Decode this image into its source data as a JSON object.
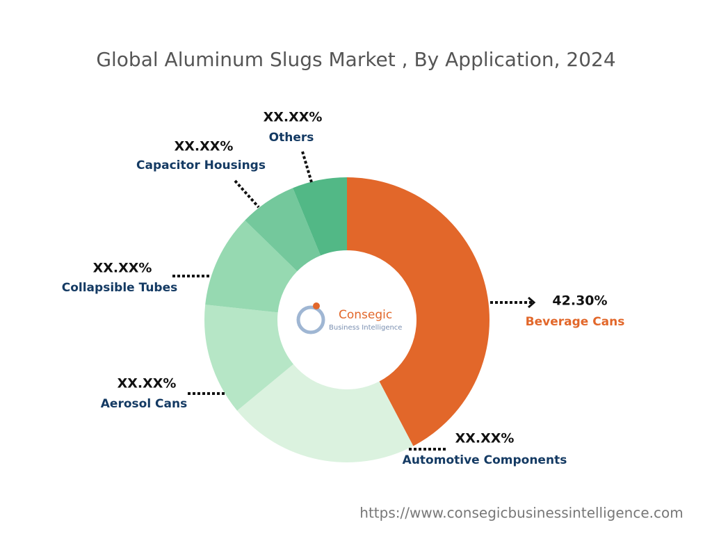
{
  "chart_data": {
    "type": "donut",
    "title": "Global Aluminum Slugs Market , By Application, 2024",
    "categories": [
      "Beverage Cans",
      "Automotive Components",
      "Aerosol Cans",
      "Collapsible Tubes",
      "Capacitor Housings",
      "Others"
    ],
    "values": [
      42.3,
      21.7,
      12.7,
      10.6,
      6.5,
      6.2
    ],
    "value_labels": [
      "42.30%",
      "XX.XX%",
      "XX.XX%",
      "XX.XX%",
      "XX.XX%",
      "XX.XX%"
    ],
    "colors": [
      "#e2672a",
      "#dbf2df",
      "#b6e6c6",
      "#96d9b1",
      "#74c89c",
      "#52b886"
    ],
    "label_colors": [
      "#e2672a",
      "#143a63",
      "#143a63",
      "#143a63",
      "#143a63",
      "#143a63"
    ]
  },
  "logo": {
    "name": "Consegic",
    "tagline": "Business Intelligence"
  },
  "source_url": "https://www.consegicbusinessintelligence.com"
}
